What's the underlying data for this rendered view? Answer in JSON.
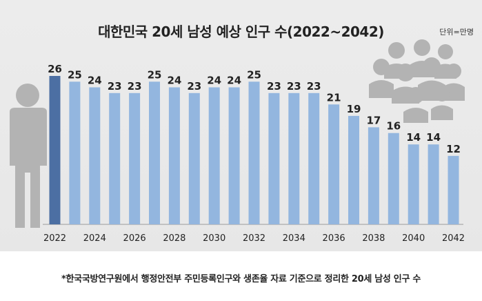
{
  "title": "대한민국 20세 남성 예상 인구 수(2022~2042)",
  "unit": "단위=만명",
  "footnote": "*한국국방연구원에서 행정안전부 주민등록인구와 생존율 자료 기준으로 정리한 20세 남성 인구 수",
  "colors": {
    "bar": "#93b6df",
    "highlight": "#4c6fa3",
    "figure": "#b3b3b3"
  },
  "icons": [
    "single-person-icon",
    "crowd-icon"
  ],
  "chart_data": {
    "type": "bar",
    "title": "대한민국 20세 남성 예상 인구 수(2022~2042)",
    "unit": "단위=만명",
    "categories": [
      "2022",
      "2023",
      "2024",
      "2025",
      "2026",
      "2027",
      "2028",
      "2029",
      "2030",
      "2031",
      "2032",
      "2033",
      "2034",
      "2035",
      "2036",
      "2037",
      "2038",
      "2039",
      "2040",
      "2041",
      "2042"
    ],
    "values": [
      26,
      25,
      24,
      23,
      23,
      25,
      24,
      23,
      24,
      24,
      25,
      23,
      23,
      23,
      21,
      19,
      17,
      16,
      14,
      14,
      12
    ],
    "highlight_index": 0,
    "xticks": [
      "2022",
      "2024",
      "2026",
      "2028",
      "2030",
      "2032",
      "2034",
      "2036",
      "2038",
      "2040",
      "2042"
    ],
    "ylim": [
      0,
      26
    ],
    "grid": false,
    "legend": "none"
  }
}
